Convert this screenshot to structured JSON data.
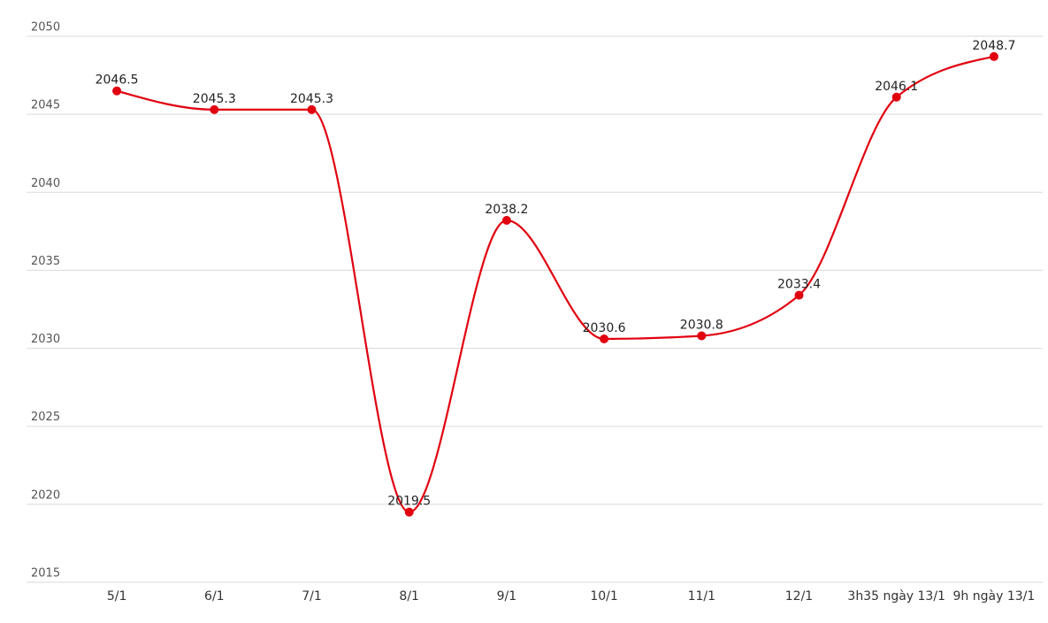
{
  "chart_data": {
    "type": "line",
    "categories": [
      "5/1",
      "6/1",
      "7/1",
      "8/1",
      "9/1",
      "10/1",
      "11/1",
      "12/1",
      "3h35 ngày 13/1",
      "9h ngày 13/1"
    ],
    "series": [
      {
        "color": "#e1000f",
        "values": [
          2046.5,
          2045.3,
          2045.3,
          2019.5,
          2038.2,
          2030.6,
          2030.8,
          2033.4,
          2046.1,
          2048.7
        ]
      }
    ],
    "ylim": [
      2015,
      2050
    ],
    "yticks": [
      2015,
      2020,
      2025,
      2030,
      2035,
      2040,
      2045,
      2050
    ],
    "grid": true
  }
}
